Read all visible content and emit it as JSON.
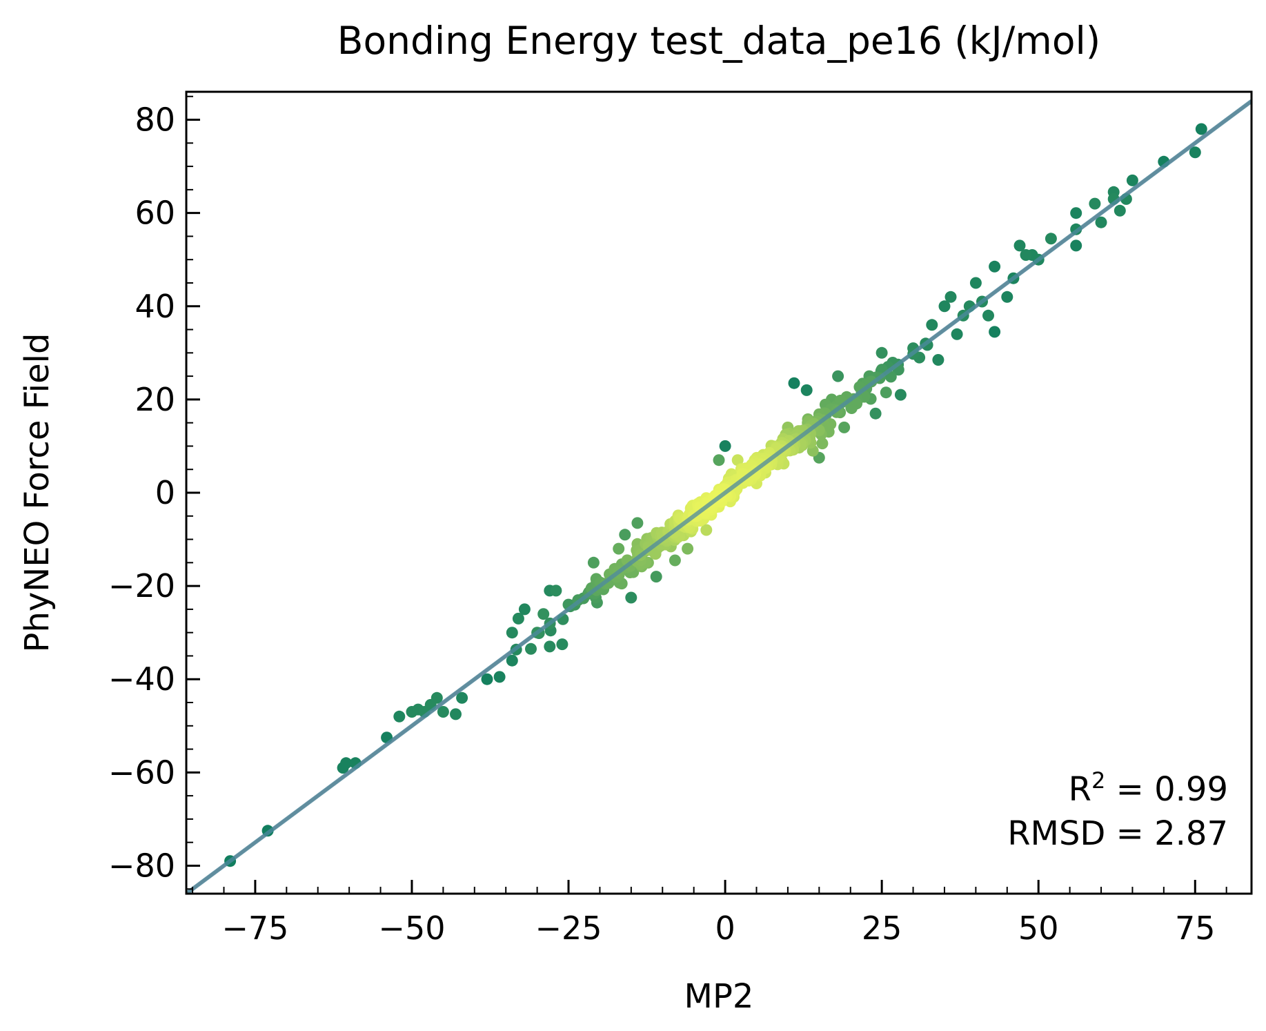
{
  "chart_data": {
    "type": "scatter",
    "title": "Bonding Energy test_data_pe16 (kJ/mol)",
    "xlabel": "MP2",
    "ylabel": "PhyNEO Force Field",
    "xlim": [
      -86,
      84
    ],
    "ylim": [
      -86,
      86
    ],
    "x_ticks": [
      -75,
      -50,
      -25,
      0,
      25,
      50,
      75
    ],
    "y_ticks": [
      -80,
      -60,
      -40,
      -20,
      0,
      20,
      40,
      60,
      80
    ],
    "x_tick_labels": [
      "−75",
      "−50",
      "−25",
      "0",
      "25",
      "50",
      "75"
    ],
    "y_tick_labels": [
      "−80",
      "−60",
      "−40",
      "−20",
      "0",
      "20",
      "40",
      "60",
      "80"
    ],
    "grid": false,
    "colormap": "summer (density)",
    "reference_line": {
      "slope": 1,
      "intercept": 0,
      "color": "#999999"
    },
    "fit_line": {
      "slope": 1.0,
      "intercept": 0.0,
      "color": "#4d8aa0"
    },
    "annotations": {
      "r2_symbol": "R",
      "r2_exponent": "2",
      "r2_value": " = 0.99",
      "rmsd_text": "RMSD = 2.87"
    },
    "outlier_points": [
      [
        -79,
        -79
      ],
      [
        -73,
        -72.5
      ],
      [
        -61,
        -59
      ],
      [
        -60.5,
        -58
      ],
      [
        -59,
        -58
      ],
      [
        -54,
        -52.5
      ],
      [
        -52,
        -48
      ],
      [
        -50,
        -47
      ],
      [
        -49,
        -46.5
      ],
      [
        -48,
        -47
      ],
      [
        -47,
        -45.5
      ],
      [
        -46,
        -44
      ],
      [
        -45,
        -47
      ],
      [
        -43,
        -47.5
      ],
      [
        -42,
        -44
      ],
      [
        -38,
        -40
      ],
      [
        -36,
        -39.5
      ],
      [
        -34,
        -30
      ],
      [
        -34,
        -36
      ],
      [
        -33,
        -27
      ],
      [
        -32,
        -25
      ],
      [
        -31,
        -33.5
      ],
      [
        -30,
        -30
      ],
      [
        -29,
        -26
      ],
      [
        -28,
        -33
      ],
      [
        -28,
        -21
      ],
      [
        -27,
        -21
      ],
      [
        -26,
        -32.5
      ],
      [
        -25,
        -24
      ],
      [
        -21,
        -15
      ],
      [
        -20,
        -20
      ],
      [
        -17,
        -12
      ],
      [
        -16,
        -9
      ],
      [
        -15,
        -22.5
      ],
      [
        -14,
        -6.5
      ],
      [
        -11,
        -18
      ],
      [
        -10,
        -10
      ],
      [
        -8,
        -14.5
      ],
      [
        -6,
        -12
      ],
      [
        -4,
        -6
      ],
      [
        -3,
        -8
      ],
      [
        -1,
        -3
      ],
      [
        1,
        4
      ],
      [
        -1,
        7
      ],
      [
        0,
        10
      ],
      [
        2,
        7
      ],
      [
        3,
        5
      ],
      [
        5,
        2
      ],
      [
        6,
        8
      ],
      [
        9,
        7
      ],
      [
        10,
        14
      ],
      [
        11,
        23.5
      ],
      [
        12,
        10
      ],
      [
        13,
        22
      ],
      [
        14,
        9
      ],
      [
        15,
        7.5
      ],
      [
        16,
        17
      ],
      [
        17,
        20
      ],
      [
        18,
        25
      ],
      [
        19,
        14
      ],
      [
        20,
        20
      ],
      [
        22,
        21
      ],
      [
        23,
        25
      ],
      [
        24,
        17
      ],
      [
        25,
        30
      ],
      [
        26,
        27
      ],
      [
        28,
        21
      ],
      [
        30,
        31
      ],
      [
        31,
        29
      ],
      [
        32,
        32
      ],
      [
        33,
        36
      ],
      [
        34,
        28.5
      ],
      [
        35,
        40
      ],
      [
        36,
        42
      ],
      [
        37,
        34
      ],
      [
        38,
        38
      ],
      [
        39,
        40
      ],
      [
        40,
        45
      ],
      [
        41,
        41
      ],
      [
        42,
        38
      ],
      [
        43,
        34.5
      ],
      [
        43,
        48.5
      ],
      [
        45,
        42
      ],
      [
        46,
        46
      ],
      [
        47,
        53
      ],
      [
        48,
        51
      ],
      [
        49,
        51
      ],
      [
        50,
        50
      ],
      [
        52,
        54.5
      ],
      [
        56,
        56.5
      ],
      [
        56,
        53
      ],
      [
        56,
        60
      ],
      [
        59,
        62
      ],
      [
        60,
        58
      ],
      [
        62,
        63
      ],
      [
        62,
        64.5
      ],
      [
        63,
        60.5
      ],
      [
        64,
        63
      ],
      [
        65,
        67
      ],
      [
        70,
        71
      ],
      [
        75,
        73
      ],
      [
        76,
        78
      ]
    ]
  }
}
